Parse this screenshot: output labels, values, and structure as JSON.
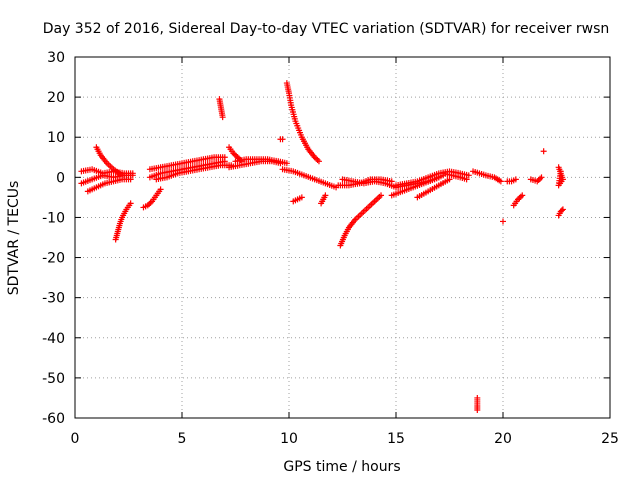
{
  "chart_data": {
    "type": "scatter",
    "title": "Day 352 of 2016, Sidereal Day-to-day VTEC variation (SDTVAR) for receiver rwsn",
    "xlabel": "GPS time / hours",
    "ylabel": "SDTVAR / TECUs",
    "xlim": [
      0,
      25
    ],
    "ylim": [
      -60,
      30
    ],
    "xticks": [
      0,
      5,
      10,
      15,
      20,
      25
    ],
    "yticks": [
      30,
      20,
      10,
      0,
      -10,
      -20,
      -30,
      -40,
      -50,
      -60
    ],
    "grid": true,
    "marker": "+",
    "color": "#ff0000",
    "series": [
      {
        "name": "SDTVAR",
        "segments": [
          {
            "x": [
              0.3,
              0.8,
              1.3,
              1.8,
              2.3,
              2.7
            ],
            "y": [
              -1.5,
              -0.5,
              0.5,
              0.0,
              0.5,
              0.5
            ]
          },
          {
            "x": [
              0.3,
              0.8,
              1.3,
              1.8,
              2.3,
              2.7
            ],
            "y": [
              1.5,
              2.0,
              1.0,
              1.5,
              1.0,
              1.0
            ]
          },
          {
            "x": [
              0.6,
              1.0,
              1.4,
              1.8,
              2.2,
              2.6
            ],
            "y": [
              -3.5,
              -2.5,
              -1.5,
              -1.0,
              -0.5,
              -0.5
            ]
          },
          {
            "x": [
              1.0,
              1.2,
              1.5,
              1.8,
              2.2
            ],
            "y": [
              7.5,
              5.5,
              3.5,
              2.0,
              0.5
            ]
          },
          {
            "x": [
              1.9,
              2.0,
              2.1,
              2.2,
              2.4,
              2.6
            ],
            "y": [
              -15.5,
              -13.5,
              -11.5,
              -10.0,
              -8.0,
              -6.5
            ]
          },
          {
            "x": [
              3.2,
              3.4,
              3.6,
              3.8,
              4.0
            ],
            "y": [
              -7.5,
              -7.0,
              -6.0,
              -4.5,
              -3.0
            ]
          },
          {
            "x": [
              3.5,
              4.0,
              4.5,
              5.0,
              5.5,
              6.0,
              6.5,
              7.0
            ],
            "y": [
              0.0,
              1.0,
              1.5,
              2.0,
              2.5,
              3.0,
              3.5,
              4.0
            ]
          },
          {
            "x": [
              3.5,
              4.0,
              4.5,
              5.0,
              5.5,
              6.0,
              6.5,
              7.0
            ],
            "y": [
              2.0,
              2.5,
              3.0,
              3.5,
              4.0,
              4.5,
              5.0,
              5.0
            ]
          },
          {
            "x": [
              3.8,
              4.3,
              4.8,
              5.3,
              5.8,
              6.3,
              6.8,
              7.3
            ],
            "y": [
              -0.5,
              0.0,
              1.0,
              1.5,
              2.0,
              2.5,
              3.0,
              3.0
            ]
          },
          {
            "x": [
              6.75,
              6.8,
              6.85,
              6.9
            ],
            "y": [
              19.5,
              18.0,
              16.5,
              15.0
            ]
          },
          {
            "x": [
              7.2,
              7.4,
              7.6,
              7.8
            ],
            "y": [
              7.5,
              6.0,
              5.0,
              4.0
            ]
          },
          {
            "x": [
              7.2,
              7.7,
              8.2,
              8.7,
              9.2,
              9.6
            ],
            "y": [
              2.5,
              3.0,
              3.5,
              4.0,
              4.0,
              3.5
            ]
          },
          {
            "x": [
              7.5,
              8.0,
              8.5,
              9.0,
              9.5,
              9.9
            ],
            "y": [
              4.0,
              4.5,
              4.5,
              4.5,
              4.0,
              3.5
            ]
          },
          {
            "x": [
              9.6,
              9.7
            ],
            "y": [
              9.5,
              9.5
            ]
          },
          {
            "x": [
              9.9,
              10.0,
              10.1,
              10.3,
              10.6,
              10.9,
              11.2,
              11.4
            ],
            "y": [
              23.5,
              21.0,
              18.0,
              14.0,
              10.0,
              7.0,
              5.0,
              4.0
            ]
          },
          {
            "x": [
              9.7,
              10.2,
              10.7,
              11.2,
              11.7,
              12.2
            ],
            "y": [
              2.0,
              1.5,
              0.5,
              -0.5,
              -1.5,
              -2.5
            ]
          },
          {
            "x": [
              10.2,
              10.4,
              10.6
            ],
            "y": [
              -6.0,
              -5.5,
              -5.0
            ]
          },
          {
            "x": [
              11.5,
              11.7
            ],
            "y": [
              -6.5,
              -4.5
            ]
          },
          {
            "x": [
              12.4,
              12.6,
              12.8,
              13.1,
              13.4,
              13.7,
              14.0,
              14.3
            ],
            "y": [
              -17.0,
              -14.5,
              -12.5,
              -10.5,
              -9.0,
              -7.5,
              -6.0,
              -4.5
            ]
          },
          {
            "x": [
              12.5,
              13.0,
              13.5,
              14.0,
              14.5,
              15.0,
              15.5,
              16.0,
              16.5,
              17.0
            ],
            "y": [
              -0.5,
              -1.0,
              -1.5,
              -1.0,
              -1.5,
              -2.5,
              -2.0,
              -1.5,
              -1.0,
              0.0
            ]
          },
          {
            "x": [
              12.3,
              12.8,
              13.3,
              13.8,
              14.3,
              14.8
            ],
            "y": [
              -2.0,
              -2.0,
              -1.5,
              -0.5,
              -0.5,
              -1.0
            ]
          },
          {
            "x": [
              14.8,
              15.3,
              15.8,
              16.3,
              16.8,
              17.2
            ],
            "y": [
              -4.5,
              -3.5,
              -2.5,
              -1.5,
              -0.5,
              0.5
            ]
          },
          {
            "x": [
              15.0,
              15.5,
              16.0,
              16.5,
              17.0,
              17.5,
              18.0,
              18.4
            ],
            "y": [
              -2.0,
              -1.5,
              -1.0,
              0.0,
              1.0,
              1.5,
              1.0,
              0.5
            ]
          },
          {
            "x": [
              16.0,
              16.5,
              17.0,
              17.5
            ],
            "y": [
              -5.0,
              -3.5,
              -2.0,
              -0.5
            ]
          },
          {
            "x": [
              17.2,
              17.6,
              18.0,
              18.3
            ],
            "y": [
              1.0,
              0.5,
              0.0,
              -0.5
            ]
          },
          {
            "x": [
              18.6,
              18.9,
              19.2,
              19.6,
              19.9
            ],
            "y": [
              1.5,
              1.0,
              0.5,
              0.0,
              -1.0
            ]
          },
          {
            "x": [
              18.8,
              18.8,
              18.8
            ],
            "y": [
              -55.0,
              -56.5,
              -58.0
            ]
          },
          {
            "x": [
              20.2,
              20.4,
              20.6
            ],
            "y": [
              -1.0,
              -1.0,
              -0.5
            ]
          },
          {
            "x": [
              20.0
            ],
            "y": [
              -11.0
            ]
          },
          {
            "x": [
              20.5,
              20.7,
              20.9
            ],
            "y": [
              -7.0,
              -5.5,
              -4.5
            ]
          },
          {
            "x": [
              21.3,
              21.6,
              21.8
            ],
            "y": [
              -0.5,
              -1.0,
              0.0
            ]
          },
          {
            "x": [
              21.9
            ],
            "y": [
              6.5
            ]
          },
          {
            "x": [
              22.6,
              22.7,
              22.8,
              22.6,
              22.7
            ],
            "y": [
              2.5,
              1.0,
              -0.5,
              -2.0,
              1.5
            ]
          },
          {
            "x": [
              22.6,
              22.7,
              22.8
            ],
            "y": [
              -9.5,
              -8.5,
              -8.0
            ]
          }
        ]
      }
    ]
  }
}
